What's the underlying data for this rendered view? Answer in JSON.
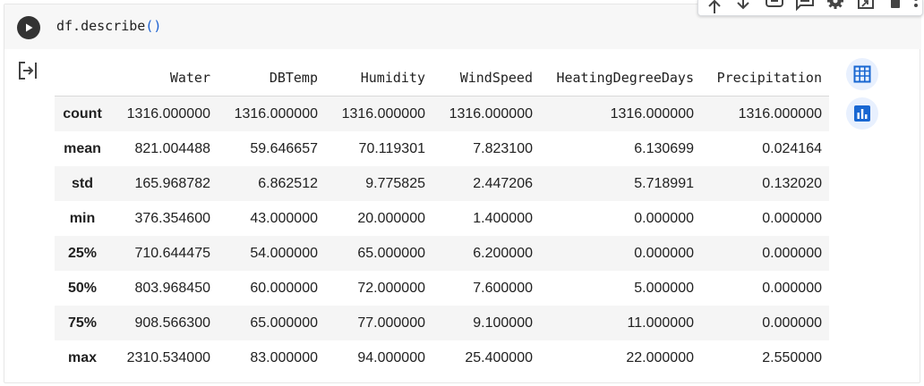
{
  "code": {
    "prefix": "df.describe",
    "parens": "()"
  },
  "toolbar": {
    "icons": [
      "arrow-up-icon",
      "arrow-down-icon",
      "link-icon",
      "comment-icon",
      "settings-icon",
      "mirror-cell-icon",
      "delete-icon",
      "more-icon"
    ]
  },
  "table": {
    "columns": [
      "Water",
      "DBTemp",
      "Humidity",
      "WindSpeed",
      "HeatingDegreeDays",
      "Precipitation"
    ],
    "rows": [
      {
        "label": "count",
        "values": [
          "1316.000000",
          "1316.000000",
          "1316.000000",
          "1316.000000",
          "1316.000000",
          "1316.000000"
        ]
      },
      {
        "label": "mean",
        "values": [
          "821.004488",
          "59.646657",
          "70.119301",
          "7.823100",
          "6.130699",
          "0.024164"
        ]
      },
      {
        "label": "std",
        "values": [
          "165.968782",
          "6.862512",
          "9.775825",
          "2.447206",
          "5.718991",
          "0.132020"
        ]
      },
      {
        "label": "min",
        "values": [
          "376.354600",
          "43.000000",
          "20.000000",
          "1.400000",
          "0.000000",
          "0.000000"
        ]
      },
      {
        "label": "25%",
        "values": [
          "710.644475",
          "54.000000",
          "65.000000",
          "6.200000",
          "0.000000",
          "0.000000"
        ]
      },
      {
        "label": "50%",
        "values": [
          "803.968450",
          "60.000000",
          "72.000000",
          "7.600000",
          "5.000000",
          "0.000000"
        ]
      },
      {
        "label": "75%",
        "values": [
          "908.566300",
          "65.000000",
          "77.000000",
          "9.100000",
          "11.000000",
          "0.000000"
        ]
      },
      {
        "label": "max",
        "values": [
          "2310.534000",
          "83.000000",
          "94.000000",
          "25.400000",
          "22.000000",
          "2.550000"
        ]
      }
    ]
  },
  "colors": {
    "accent": "#1967d2",
    "side_button_bg": "#e8f0fe",
    "row_stripe": "#f5f5f5"
  }
}
